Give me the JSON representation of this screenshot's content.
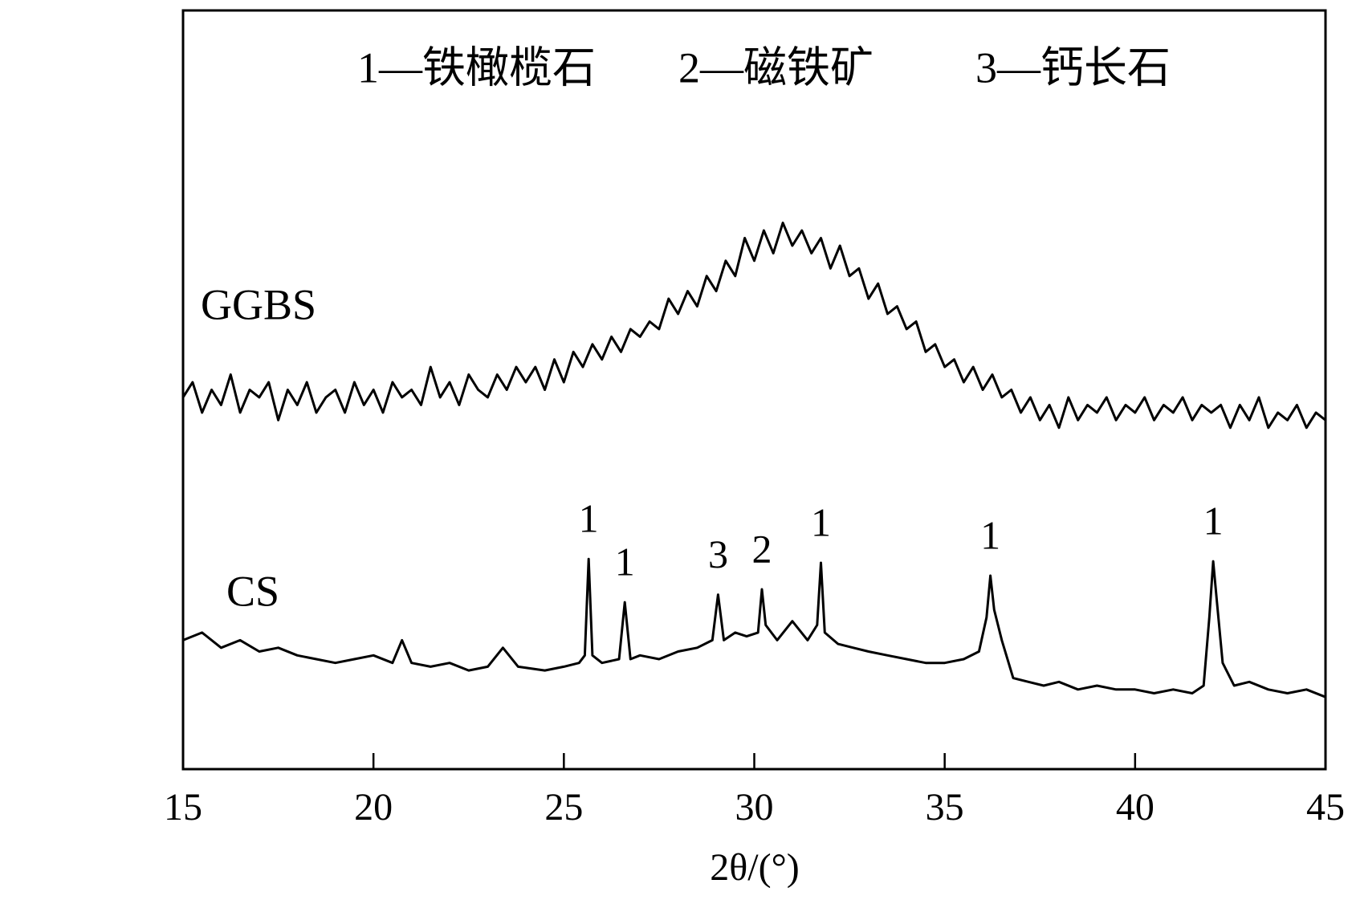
{
  "chart_data": {
    "type": "line",
    "x_label": "2θ/(°)",
    "legend_key": [
      "1—铁橄榄石",
      "2—磁铁矿",
      "3—钙长石"
    ],
    "xlim": [
      15,
      45
    ],
    "xticks": [
      15,
      20,
      25,
      30,
      35,
      40,
      45
    ],
    "ylim": [
      0,
      100
    ],
    "series": [
      {
        "name": "GGBS",
        "color": "#000000",
        "x": [
          15,
          15.25,
          15.5,
          15.75,
          16,
          16.25,
          16.5,
          16.75,
          17,
          17.25,
          17.5,
          17.75,
          18,
          18.25,
          18.5,
          18.75,
          19,
          19.25,
          19.5,
          19.75,
          20,
          20.25,
          20.5,
          20.75,
          21,
          21.25,
          21.5,
          21.75,
          22,
          22.25,
          22.5,
          22.75,
          23,
          23.25,
          23.5,
          23.75,
          24,
          24.25,
          24.5,
          24.75,
          25,
          25.25,
          25.5,
          25.75,
          26,
          26.25,
          26.5,
          26.75,
          27,
          27.25,
          27.5,
          27.75,
          28,
          28.25,
          28.5,
          28.75,
          29,
          29.25,
          29.5,
          29.75,
          30,
          30.25,
          30.5,
          30.75,
          31,
          31.25,
          31.5,
          31.75,
          32,
          32.25,
          32.5,
          32.75,
          33,
          33.25,
          33.5,
          33.75,
          34,
          34.25,
          34.5,
          34.75,
          35,
          35.25,
          35.5,
          35.75,
          36,
          36.25,
          36.5,
          36.75,
          37,
          37.25,
          37.5,
          37.75,
          38,
          38.25,
          38.5,
          38.75,
          39,
          39.25,
          39.5,
          39.75,
          40,
          40.25,
          40.5,
          40.75,
          41,
          41.25,
          41.5,
          41.75,
          42,
          42.25,
          42.5,
          42.75,
          43,
          43.25,
          43.5,
          43.75,
          44,
          44.25,
          44.5,
          44.75,
          45
        ],
        "values": [
          49,
          51,
          47,
          50,
          48,
          52,
          47,
          50,
          49,
          51,
          46,
          50,
          48,
          51,
          47,
          49,
          50,
          47,
          51,
          48,
          50,
          47,
          51,
          49,
          50,
          48,
          53,
          49,
          51,
          48,
          52,
          50,
          49,
          52,
          50,
          53,
          51,
          53,
          50,
          54,
          51,
          55,
          53,
          56,
          54,
          57,
          55,
          58,
          57,
          59,
          58,
          62,
          60,
          63,
          61,
          65,
          63,
          67,
          65,
          70,
          67,
          71,
          68,
          72,
          69,
          71,
          68,
          70,
          66,
          69,
          65,
          66,
          62,
          64,
          60,
          61,
          58,
          59,
          55,
          56,
          53,
          54,
          51,
          53,
          50,
          52,
          49,
          50,
          47,
          49,
          46,
          48,
          45,
          49,
          46,
          48,
          47,
          49,
          46,
          48,
          47,
          49,
          46,
          48,
          47,
          49,
          46,
          48,
          47,
          48,
          45,
          48,
          46,
          49,
          45,
          47,
          46,
          48,
          45,
          47,
          46
        ]
      },
      {
        "name": "CS",
        "color": "#000000",
        "x": [
          15,
          15.5,
          16,
          16.5,
          17,
          17.5,
          18,
          18.5,
          19,
          19.5,
          20,
          20.5,
          20.75,
          21,
          21.5,
          22,
          22.5,
          23,
          23.4,
          23.8,
          24.5,
          25,
          25.4,
          25.55,
          25.65,
          25.75,
          26,
          26.45,
          26.6,
          26.75,
          27,
          27.5,
          28,
          28.5,
          28.9,
          29.05,
          29.2,
          29.5,
          29.8,
          30.1,
          30.2,
          30.3,
          30.6,
          31,
          31.4,
          31.65,
          31.75,
          31.85,
          32.2,
          32.6,
          33,
          33.5,
          34,
          34.5,
          35,
          35.5,
          35.9,
          36.1,
          36.2,
          36.3,
          36.5,
          36.8,
          37.2,
          37.6,
          38,
          38.5,
          39,
          39.5,
          40,
          40.5,
          41,
          41.5,
          41.8,
          41.95,
          42.05,
          42.15,
          42.3,
          42.6,
          43,
          43.5,
          44,
          44.5,
          45
        ],
        "values": [
          17,
          18,
          16,
          17,
          15.5,
          16,
          15,
          14.5,
          14,
          14.5,
          15,
          14,
          17,
          14,
          13.5,
          14,
          13,
          13.5,
          16,
          13.5,
          13,
          13.5,
          14,
          15,
          27.7,
          15,
          14,
          14.5,
          22,
          14.5,
          15,
          14.5,
          15.5,
          16,
          17,
          23,
          17,
          18,
          17.5,
          18,
          23.7,
          19,
          17,
          19.5,
          17,
          19,
          27.2,
          18,
          16.5,
          16,
          15.5,
          15,
          14.5,
          14,
          14,
          14.5,
          15.5,
          20,
          25.5,
          21,
          17,
          12,
          11.5,
          11,
          11.5,
          10.5,
          11,
          10.5,
          10.5,
          10,
          10.5,
          10,
          11,
          20,
          27.4,
          22,
          14,
          11,
          11.5,
          10.5,
          10,
          10.5,
          9.5
        ]
      }
    ],
    "annotations": [
      {
        "text": "1",
        "x": 25.65
      },
      {
        "text": "1",
        "x": 26.6
      },
      {
        "text": "3",
        "x": 29.05
      },
      {
        "text": "2",
        "x": 30.2
      },
      {
        "text": "1",
        "x": 31.75
      },
      {
        "text": "1",
        "x": 36.2
      },
      {
        "text": "1",
        "x": 42.05
      }
    ]
  }
}
